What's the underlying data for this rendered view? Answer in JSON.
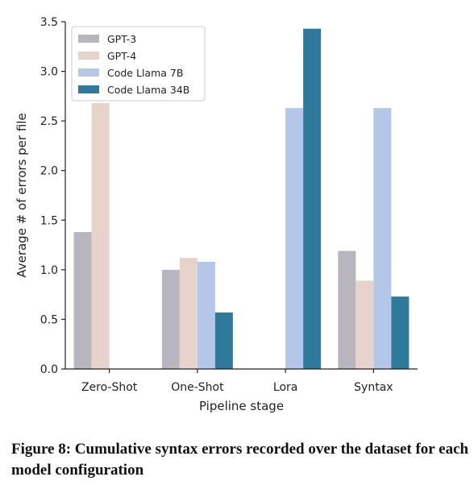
{
  "chart_data": {
    "type": "bar",
    "categories": [
      "Zero-Shot",
      "One-Shot",
      "Lora",
      "Syntax"
    ],
    "series": [
      {
        "name": "GPT-3",
        "color": "#b8b5be",
        "values": [
          1.38,
          1.0,
          null,
          1.19
        ]
      },
      {
        "name": "GPT-4",
        "color": "#e6d3cc",
        "values": [
          2.68,
          1.12,
          null,
          0.89
        ]
      },
      {
        "name": "Code Llama 7B",
        "color": "#b4c7e8",
        "values": [
          null,
          1.08,
          2.63,
          2.63
        ]
      },
      {
        "name": "Code Llama 34B",
        "color": "#2f7a9a",
        "values": [
          null,
          0.57,
          3.43,
          0.73
        ]
      }
    ],
    "xlabel": "Pipeline stage",
    "ylabel": "Average # of errors per file",
    "ylim": [
      0,
      3.5
    ],
    "yticks": [
      "0.0",
      "0.5",
      "1.0",
      "1.5",
      "2.0",
      "2.5",
      "3.0",
      "3.5"
    ],
    "legend_position": "top-left",
    "grid": false
  },
  "caption": "Figure 8: Cumulative syntax errors recorded over the dataset for each model configuration"
}
